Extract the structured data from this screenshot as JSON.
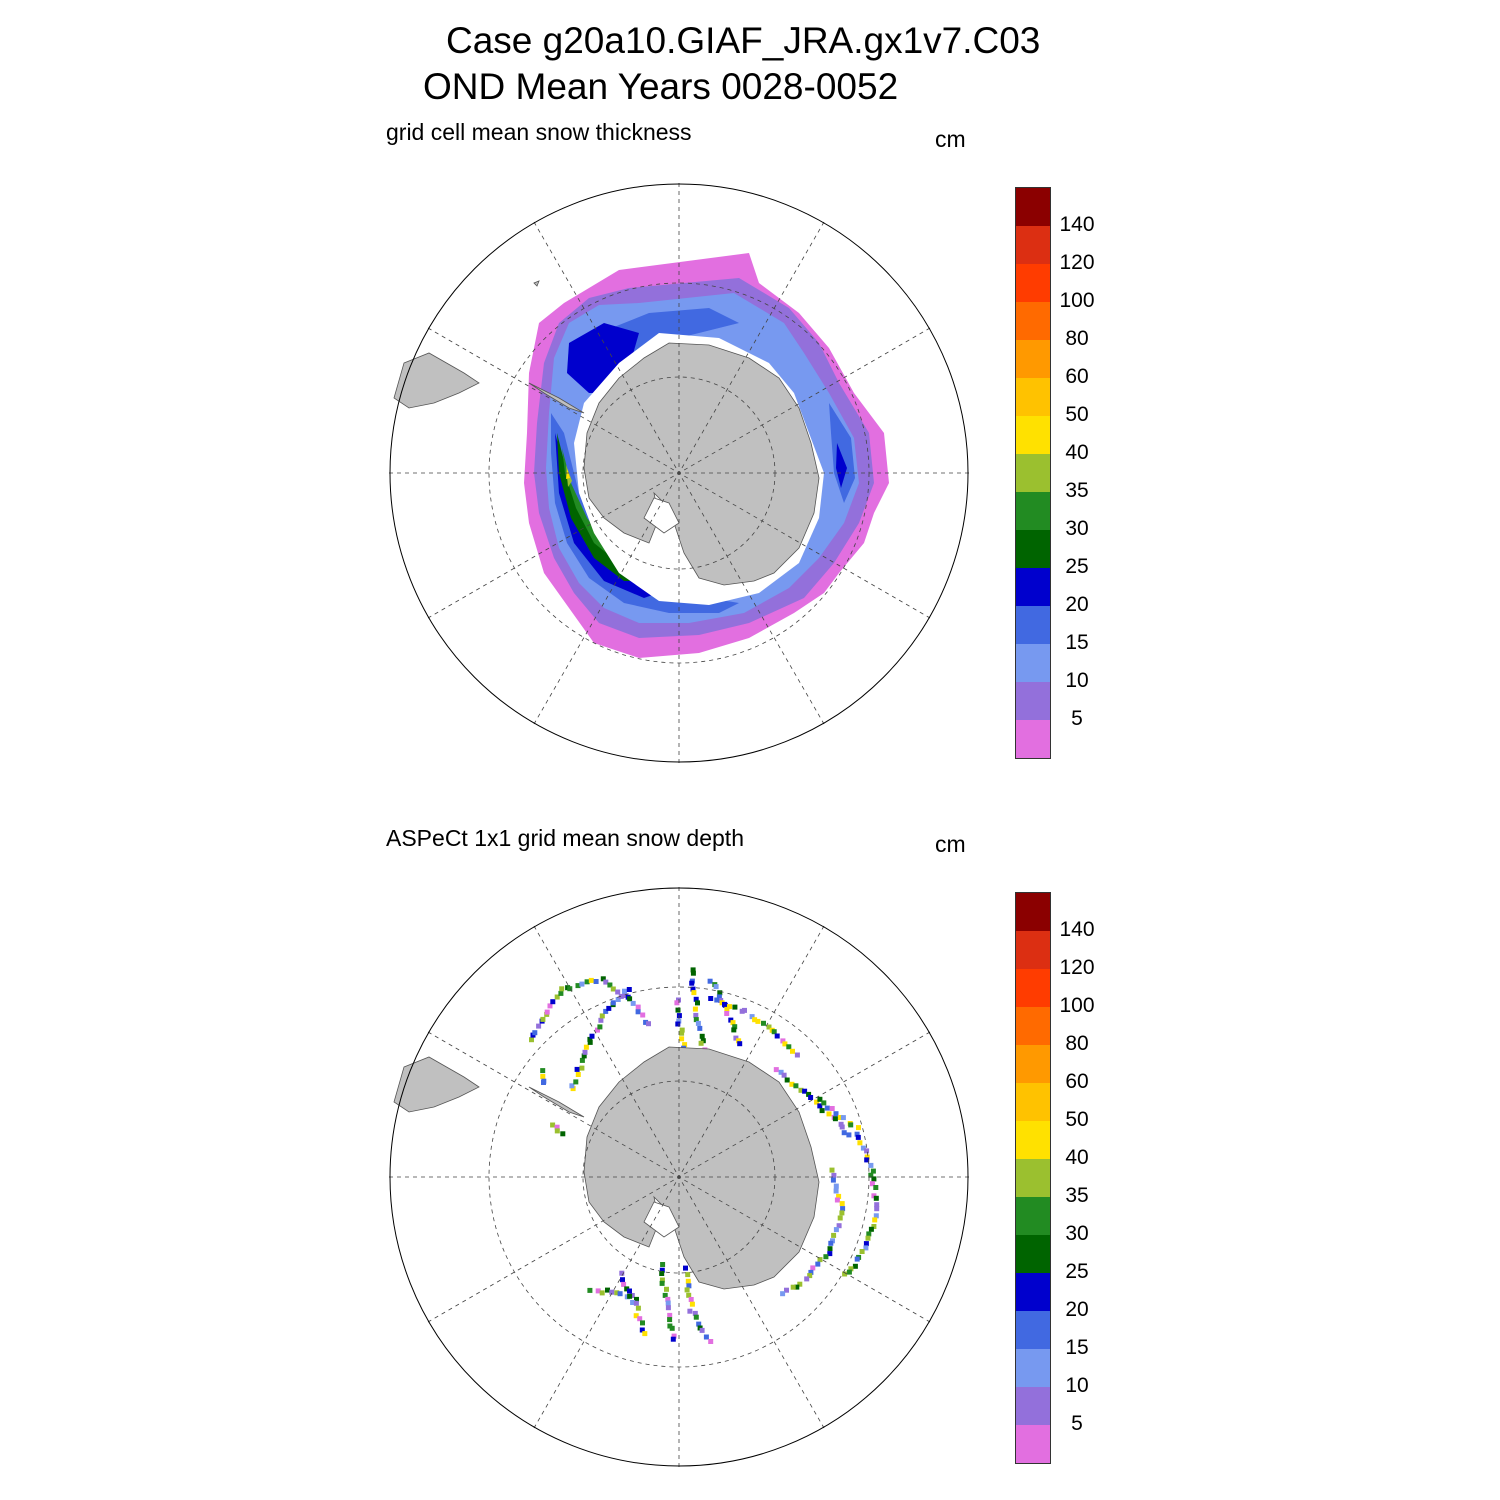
{
  "figure": {
    "title_line1": "Case g20a10.GIAF_JRA.gx1v7.C03",
    "title_line2": "OND Mean   Years 0028-0052"
  },
  "panels": [
    {
      "title": "grid cell mean snow thickness",
      "units": "cm"
    },
    {
      "title": "ASPeCt 1x1 grid mean snow depth",
      "units": "cm"
    }
  ],
  "colorbar": {
    "labels": [
      "140",
      "120",
      "100",
      "80",
      "60",
      "50",
      "40",
      "35",
      "30",
      "25",
      "20",
      "15",
      "10",
      "5"
    ],
    "colors_top_to_bottom": [
      "#8b0000",
      "#dc2f12",
      "#ff3c00",
      "#ff6a00",
      "#ff9900",
      "#ffc200",
      "#ffe100",
      "#9bc02f",
      "#228b22",
      "#006400",
      "#0000cd",
      "#4169e1",
      "#7799f0",
      "#9370db",
      "#e26fe0"
    ]
  },
  "map_style": {
    "land_color": "#c0c0c0",
    "projection": "south polar stereographic",
    "graticule": "dashed"
  }
}
